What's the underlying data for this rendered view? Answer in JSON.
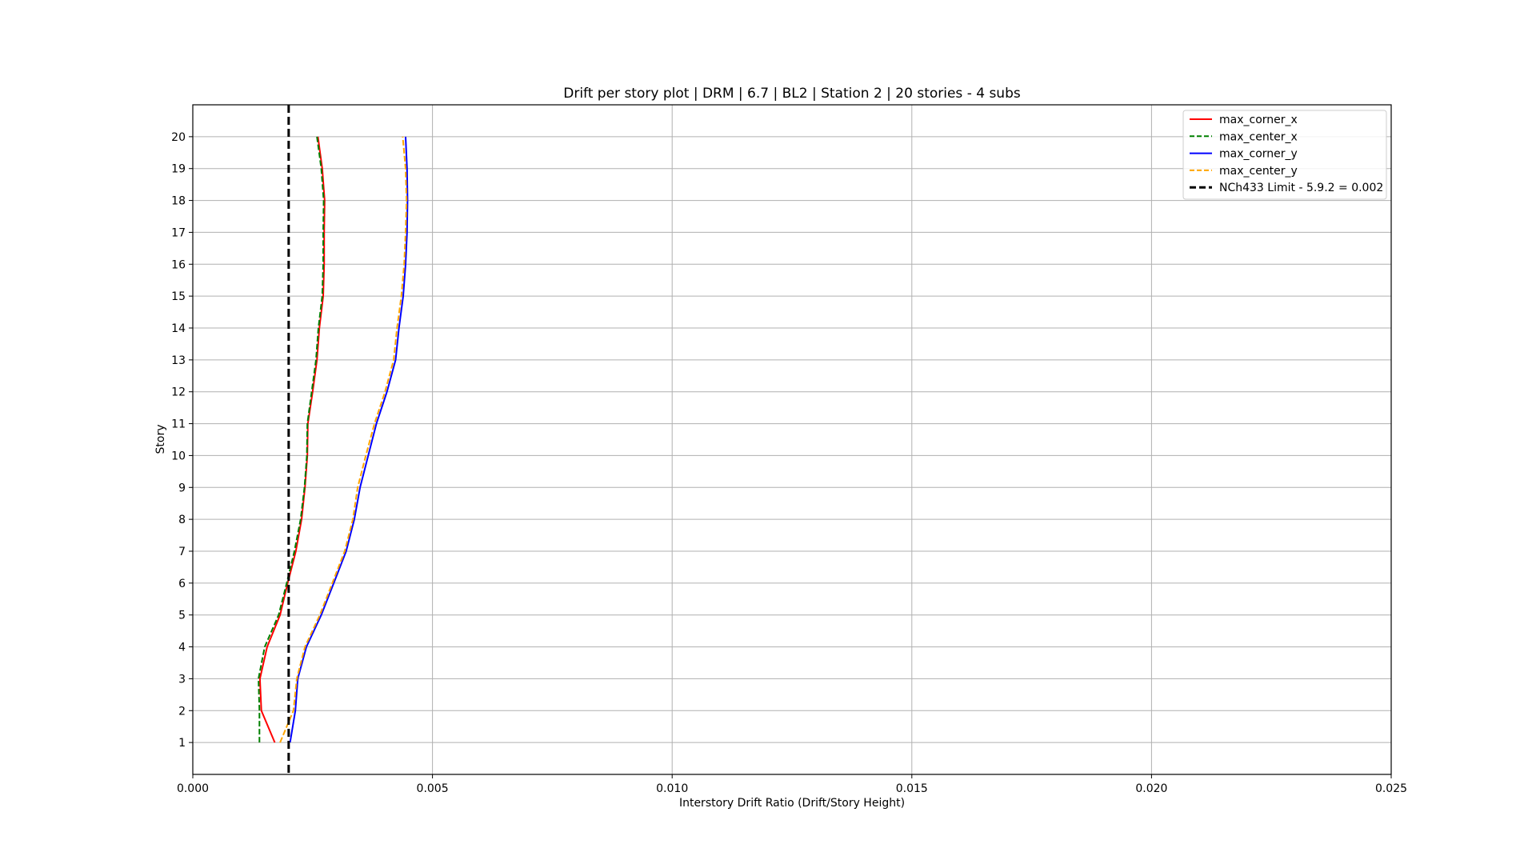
{
  "chart_data": {
    "type": "line",
    "title": "Drift per story plot | DRM |  6.7 | BL2 | Station 2 | 20 stories - 4 subs",
    "xlabel": "Interstory Drift Ratio (Drift/Story Height)",
    "ylabel": "Story",
    "xlim": [
      0,
      0.025
    ],
    "ylim": [
      0,
      21
    ],
    "xticks": [
      0,
      0.005,
      0.01,
      0.015,
      0.02,
      0.025
    ],
    "xtick_labels": [
      "0.000",
      "0.005",
      "0.010",
      "0.015",
      "0.020",
      "0.025"
    ],
    "yticks": [
      1,
      2,
      3,
      4,
      5,
      6,
      7,
      8,
      9,
      10,
      11,
      12,
      13,
      14,
      15,
      16,
      17,
      18,
      19,
      20
    ],
    "ytick_labels": [
      "1",
      "2",
      "3",
      "4",
      "5",
      "6",
      "7",
      "8",
      "9",
      "10",
      "11",
      "12",
      "13",
      "14",
      "15",
      "16",
      "17",
      "18",
      "19",
      "20"
    ],
    "grid": true,
    "legend_position": "top-right",
    "series": [
      {
        "name": "max_corner_x",
        "color": "#ff0000",
        "dashed": false,
        "y": [
          1,
          2,
          3,
          4,
          5,
          6,
          7,
          8,
          9,
          10,
          11,
          12,
          13,
          14,
          15,
          16,
          17,
          18,
          19,
          20
        ],
        "x": [
          0.00171,
          0.00143,
          0.0014,
          0.00155,
          0.00182,
          0.00198,
          0.00215,
          0.00227,
          0.00234,
          0.00239,
          0.0024,
          0.0025,
          0.00259,
          0.00264,
          0.00272,
          0.00274,
          0.00274,
          0.00275,
          0.0027,
          0.00261
        ]
      },
      {
        "name": "max_center_x",
        "color": "#008000",
        "dashed": true,
        "y": [
          1,
          2,
          3,
          4,
          5,
          6,
          7,
          8,
          9,
          10,
          11,
          12,
          13,
          14,
          15,
          16,
          17,
          18,
          19,
          20
        ],
        "x": [
          0.00139,
          0.00139,
          0.00137,
          0.0015,
          0.00179,
          0.00196,
          0.00212,
          0.00225,
          0.00233,
          0.00238,
          0.00239,
          0.00248,
          0.00257,
          0.00262,
          0.0027,
          0.00272,
          0.00272,
          0.00273,
          0.00268,
          0.00259
        ]
      },
      {
        "name": "max_corner_y",
        "color": "#0000ff",
        "dashed": false,
        "y": [
          1,
          2,
          3,
          4,
          5,
          6,
          7,
          8,
          9,
          10,
          11,
          12,
          13,
          14,
          15,
          16,
          17,
          18,
          19,
          20
        ],
        "x": [
          0.00203,
          0.00214,
          0.00219,
          0.00237,
          0.00268,
          0.00294,
          0.0032,
          0.00337,
          0.00349,
          0.00366,
          0.00383,
          0.00405,
          0.00423,
          0.0043,
          0.00439,
          0.00444,
          0.00447,
          0.00448,
          0.00447,
          0.00444
        ]
      },
      {
        "name": "max_center_y",
        "color": "#ffa500",
        "dashed": true,
        "y": [
          1,
          2,
          3,
          4,
          5,
          6,
          7,
          8,
          9,
          10,
          11,
          12,
          13,
          14,
          15,
          16,
          17,
          18,
          19,
          20
        ],
        "x": [
          0.00182,
          0.0021,
          0.00217,
          0.00234,
          0.00265,
          0.00291,
          0.00317,
          0.00334,
          0.00344,
          0.00361,
          0.00379,
          0.00401,
          0.00419,
          0.00426,
          0.00435,
          0.00441,
          0.00444,
          0.00446,
          0.00444,
          0.00438
        ]
      }
    ],
    "limit_line": {
      "name": "NCh433 Limit - 5.9.2 = 0.002",
      "x": 0.002,
      "color": "#000000",
      "dashed": true
    }
  }
}
